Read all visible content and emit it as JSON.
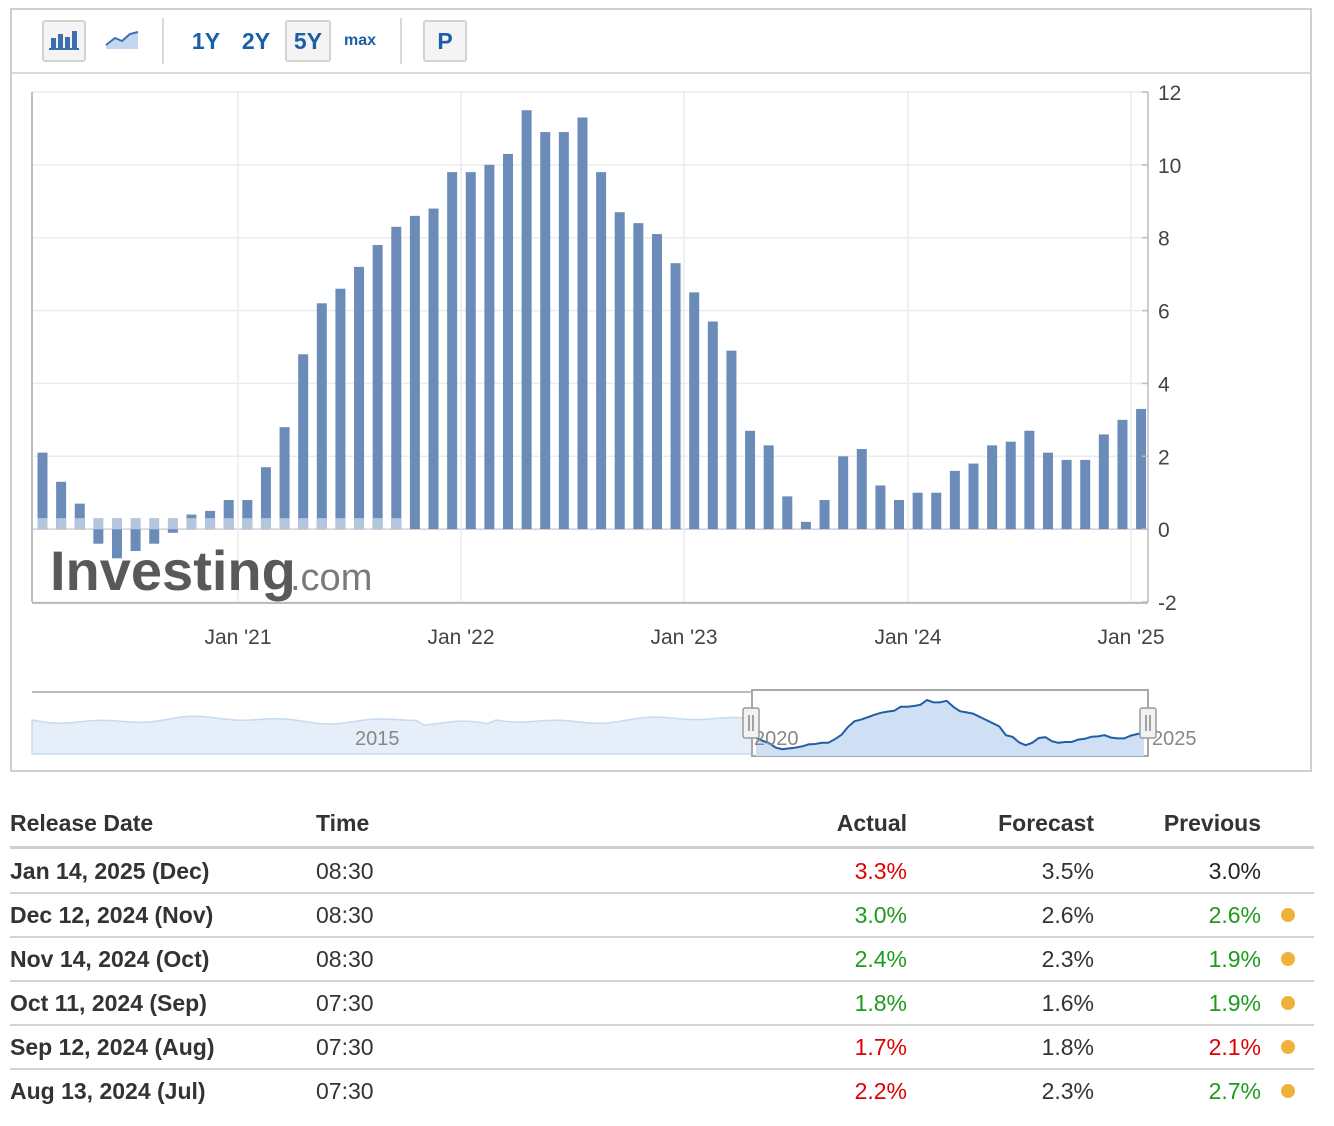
{
  "toolbar": {
    "bar_chart_icon": "bar-chart-icon",
    "line_chart_icon": "line-chart-icon",
    "periods": [
      "1Y",
      "2Y",
      "5Y",
      "max"
    ],
    "active_period": "5Y",
    "print_label": "P"
  },
  "watermark": {
    "bold": "Investing",
    "light": ".com"
  },
  "navigator_labels": [
    "2015",
    "2020",
    "2025"
  ],
  "colors": {
    "bar": "#6b8cb8",
    "bar_faded": "#b3c6de",
    "navigator_line": "#1f5fa6",
    "navigator_fill": "#cfe0f5",
    "positive": "#1e9a1e",
    "negative": "#e00000",
    "neutral": "#222222",
    "pending_dot": "#f0b23b"
  },
  "chart_data": {
    "type": "bar",
    "x_tick_labels": [
      "Jan '21",
      "Jan '22",
      "Jan '23",
      "Jan '24",
      "Jan '25"
    ],
    "y_ticks": [
      12,
      10,
      8,
      6,
      4,
      2,
      0,
      -2
    ],
    "ylim": [
      -2,
      12
    ],
    "grid": true,
    "series": [
      {
        "values": [
          2.1,
          1.3,
          0.7,
          -0.4,
          -0.8,
          -0.6,
          -0.4,
          -0.1,
          0.4,
          0.5,
          0.8,
          0.8,
          1.7,
          2.8,
          4.8,
          6.2,
          6.6,
          7.2,
          7.8,
          8.3,
          8.6,
          8.8,
          9.8,
          9.8,
          10.0,
          10.3,
          11.5,
          10.9,
          10.9,
          11.3,
          9.8,
          8.7,
          8.4,
          8.1,
          7.3,
          6.5,
          5.7,
          4.9,
          2.7,
          2.3,
          0.9,
          0.2,
          0.8,
          2.0,
          2.2,
          1.2,
          0.8,
          1.0,
          1.0,
          1.6,
          1.8,
          2.3,
          2.4,
          2.7,
          2.1,
          1.9,
          1.9,
          2.6,
          3.0,
          3.3
        ]
      }
    ]
  },
  "table": {
    "headers": [
      "Release Date",
      "Time",
      "Actual",
      "Forecast",
      "Previous"
    ],
    "rows": [
      {
        "date": "Jan 14, 2025 (Dec)",
        "time": "08:30",
        "actual": "3.3%",
        "actual_color": "#e00000",
        "forecast": "3.5%",
        "previous": "3.0%",
        "previous_color": "#222222",
        "dot": false
      },
      {
        "date": "Dec 12, 2024 (Nov)",
        "time": "08:30",
        "actual": "3.0%",
        "actual_color": "#1e9a1e",
        "forecast": "2.6%",
        "previous": "2.6%",
        "previous_color": "#1e9a1e",
        "dot": true
      },
      {
        "date": "Nov 14, 2024 (Oct)",
        "time": "08:30",
        "actual": "2.4%",
        "actual_color": "#1e9a1e",
        "forecast": "2.3%",
        "previous": "1.9%",
        "previous_color": "#1e9a1e",
        "dot": true
      },
      {
        "date": "Oct 11, 2024 (Sep)",
        "time": "07:30",
        "actual": "1.8%",
        "actual_color": "#1e9a1e",
        "forecast": "1.6%",
        "previous": "1.9%",
        "previous_color": "#1e9a1e",
        "dot": true
      },
      {
        "date": "Sep 12, 2024 (Aug)",
        "time": "07:30",
        "actual": "1.7%",
        "actual_color": "#e00000",
        "forecast": "1.8%",
        "previous": "2.1%",
        "previous_color": "#e00000",
        "dot": true
      },
      {
        "date": "Aug 13, 2024 (Jul)",
        "time": "07:30",
        "actual": "2.2%",
        "actual_color": "#e00000",
        "forecast": "2.3%",
        "previous": "2.7%",
        "previous_color": "#1e9a1e",
        "dot": true
      }
    ]
  }
}
